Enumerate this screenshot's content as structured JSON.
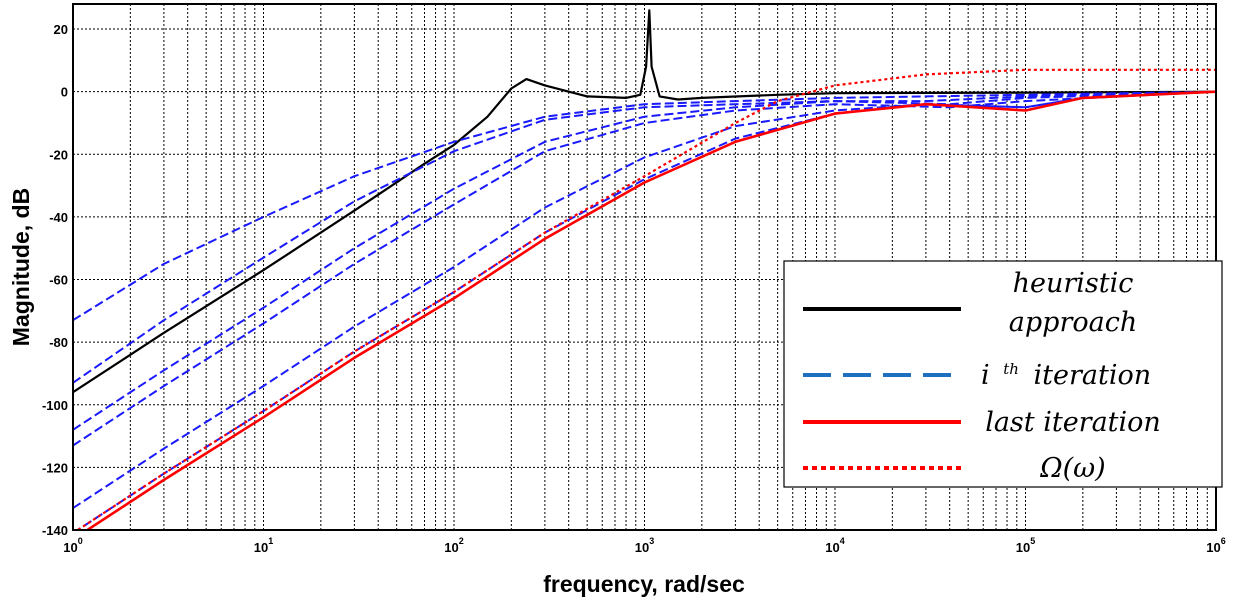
{
  "chart_data": {
    "type": "line",
    "xscale": "log",
    "xlim": [
      1,
      1000000
    ],
    "ylim": [
      -140,
      28
    ],
    "xlabel": "frequency, rad/sec",
    "ylabel": "Magnitude, dB",
    "yticks": [
      20,
      0,
      -20,
      -40,
      -60,
      -80,
      -100,
      -120,
      -140
    ],
    "xticks": [
      {
        "value": 1,
        "base": "10",
        "exp": "0"
      },
      {
        "value": 10,
        "base": "10",
        "exp": "1"
      },
      {
        "value": 100,
        "base": "10",
        "exp": "2"
      },
      {
        "value": 1000,
        "base": "10",
        "exp": "3"
      },
      {
        "value": 10000,
        "base": "10",
        "exp": "4"
      },
      {
        "value": 100000,
        "base": "10",
        "exp": "5"
      },
      {
        "value": 1000000,
        "base": "10",
        "exp": "6"
      }
    ],
    "grid": true,
    "legend": {
      "placement": "lower-right",
      "entries": [
        {
          "lines": [
            "heuristic",
            "approach"
          ],
          "color": "#000000",
          "style": "solid"
        },
        {
          "sup": "i",
          "supText": "th",
          "text": "iteration",
          "color": "#1f6fc0",
          "style": "dashed"
        },
        {
          "text": "last iteration",
          "color": "#ff0000",
          "style": "solid"
        },
        {
          "text": "Ω(ω)",
          "color": "#ff0000",
          "style": "dotted"
        }
      ]
    },
    "series": [
      {
        "color": "#000000",
        "style": "solid",
        "width": 2.2,
        "points": [
          [
            1,
            -96
          ],
          [
            3,
            -77
          ],
          [
            10,
            -57
          ],
          [
            30,
            -38
          ],
          [
            70,
            -23
          ],
          [
            100,
            -17
          ],
          [
            150,
            -8
          ],
          [
            200,
            1
          ],
          [
            240,
            4
          ],
          [
            300,
            2
          ],
          [
            500,
            -1.5
          ],
          [
            800,
            -2
          ],
          [
            950,
            -1
          ],
          [
            1020,
            8
          ],
          [
            1060,
            26
          ],
          [
            1090,
            8
          ],
          [
            1200,
            -1.5
          ],
          [
            1500,
            -2.5
          ],
          [
            2000,
            -2
          ],
          [
            5000,
            -1
          ],
          [
            10000,
            -0.5
          ],
          [
            100000,
            -0.3
          ],
          [
            1000000,
            0
          ]
        ]
      },
      {
        "color": "#1a1aff",
        "style": "dashed",
        "width": 2,
        "points": [
          [
            1,
            -73
          ],
          [
            3,
            -55
          ],
          [
            10,
            -40
          ],
          [
            30,
            -27
          ],
          [
            100,
            -16
          ],
          [
            300,
            -8
          ],
          [
            1000,
            -4
          ],
          [
            3000,
            -3
          ],
          [
            10000,
            -2
          ],
          [
            30000,
            -1.5
          ],
          [
            100000,
            -1
          ],
          [
            1000000,
            0
          ]
        ]
      },
      {
        "color": "#1a1aff",
        "style": "dashed",
        "width": 2,
        "points": [
          [
            1,
            -93
          ],
          [
            3,
            -73
          ],
          [
            10,
            -53
          ],
          [
            30,
            -35
          ],
          [
            100,
            -19
          ],
          [
            300,
            -9
          ],
          [
            1000,
            -5
          ],
          [
            3000,
            -4
          ],
          [
            10000,
            -3
          ],
          [
            30000,
            -3
          ],
          [
            100000,
            -1.5
          ],
          [
            1000000,
            0
          ]
        ]
      },
      {
        "color": "#1a1aff",
        "style": "dashed",
        "width": 2,
        "points": [
          [
            1,
            -108
          ],
          [
            3,
            -89
          ],
          [
            10,
            -69
          ],
          [
            30,
            -50
          ],
          [
            100,
            -31
          ],
          [
            300,
            -16
          ],
          [
            1000,
            -8
          ],
          [
            3000,
            -5
          ],
          [
            10000,
            -3
          ],
          [
            40000,
            -4
          ],
          [
            100000,
            -2
          ],
          [
            1000000,
            0
          ]
        ]
      },
      {
        "color": "#1a1aff",
        "style": "dashed",
        "width": 2,
        "points": [
          [
            1,
            -113
          ],
          [
            3,
            -94
          ],
          [
            10,
            -74
          ],
          [
            30,
            -55
          ],
          [
            100,
            -36
          ],
          [
            300,
            -19
          ],
          [
            1000,
            -10
          ],
          [
            3000,
            -6
          ],
          [
            10000,
            -4
          ],
          [
            40000,
            -5
          ],
          [
            100000,
            -3
          ],
          [
            1000000,
            0
          ]
        ]
      },
      {
        "color": "#1a1aff",
        "style": "dashed",
        "width": 2,
        "points": [
          [
            1,
            -133
          ],
          [
            3,
            -114
          ],
          [
            10,
            -94
          ],
          [
            30,
            -75
          ],
          [
            100,
            -56
          ],
          [
            300,
            -37
          ],
          [
            1000,
            -21
          ],
          [
            3000,
            -11
          ],
          [
            10000,
            -6
          ],
          [
            30000,
            -4
          ],
          [
            100000,
            -5
          ],
          [
            200000,
            -2
          ],
          [
            1000000,
            0
          ]
        ]
      },
      {
        "color": "#1a1aff",
        "style": "dashed",
        "width": 2,
        "points": [
          [
            1,
            -141
          ],
          [
            3,
            -122
          ],
          [
            10,
            -102
          ],
          [
            30,
            -83
          ],
          [
            100,
            -64
          ],
          [
            300,
            -45
          ],
          [
            1000,
            -28
          ],
          [
            3000,
            -15
          ],
          [
            10000,
            -7
          ],
          [
            30000,
            -4
          ],
          [
            100000,
            -5
          ],
          [
            200000,
            -2
          ],
          [
            1000000,
            0
          ]
        ]
      },
      {
        "color": "#ff0000",
        "style": "dotted",
        "width": 2.2,
        "points": [
          [
            1,
            -141
          ],
          [
            3,
            -122
          ],
          [
            10,
            -102
          ],
          [
            30,
            -83
          ],
          [
            100,
            -64
          ],
          [
            300,
            -45
          ],
          [
            1000,
            -27
          ],
          [
            3000,
            -10
          ],
          [
            5000,
            -3
          ],
          [
            10000,
            2
          ],
          [
            30000,
            5.5
          ],
          [
            100000,
            7
          ],
          [
            1000000,
            7
          ]
        ]
      },
      {
        "color": "#ff0000",
        "style": "solid",
        "width": 2.6,
        "points": [
          [
            1,
            -143
          ],
          [
            3,
            -124
          ],
          [
            10,
            -104
          ],
          [
            30,
            -85
          ],
          [
            100,
            -66
          ],
          [
            300,
            -47
          ],
          [
            1000,
            -29
          ],
          [
            3000,
            -16
          ],
          [
            10000,
            -7
          ],
          [
            30000,
            -4
          ],
          [
            100000,
            -6
          ],
          [
            200000,
            -2
          ],
          [
            1000000,
            0
          ]
        ]
      }
    ]
  }
}
